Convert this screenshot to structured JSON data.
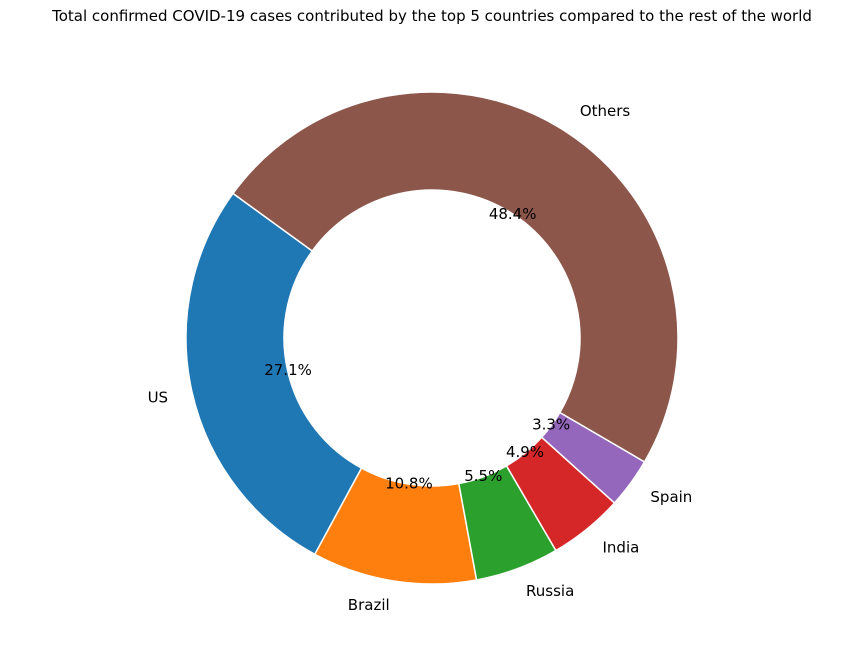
{
  "chart_data": {
    "type": "pie",
    "variant": "donut",
    "title": "Total confirmed COVID-19 cases contributed by the top 5 countries compared to the rest of the world",
    "slices": [
      {
        "label": "US",
        "percent": 27.1,
        "percent_label": "27.1%",
        "color": "#1f77b4"
      },
      {
        "label": "Brazil",
        "percent": 10.8,
        "percent_label": "10.8%",
        "color": "#ff7f0e"
      },
      {
        "label": "Russia",
        "percent": 5.5,
        "percent_label": "5.5%",
        "color": "#2ca02c"
      },
      {
        "label": "India",
        "percent": 4.9,
        "percent_label": "4.9%",
        "color": "#d62728"
      },
      {
        "label": "Spain",
        "percent": 3.3,
        "percent_label": "3.3%",
        "color": "#9467bd"
      },
      {
        "label": "Others",
        "percent": 48.4,
        "percent_label": "48.4%",
        "color": "#8c564b"
      }
    ],
    "start_angle_deg": 144,
    "direction": "counterclockwise",
    "wedge_edge_color": "#ffffff"
  }
}
